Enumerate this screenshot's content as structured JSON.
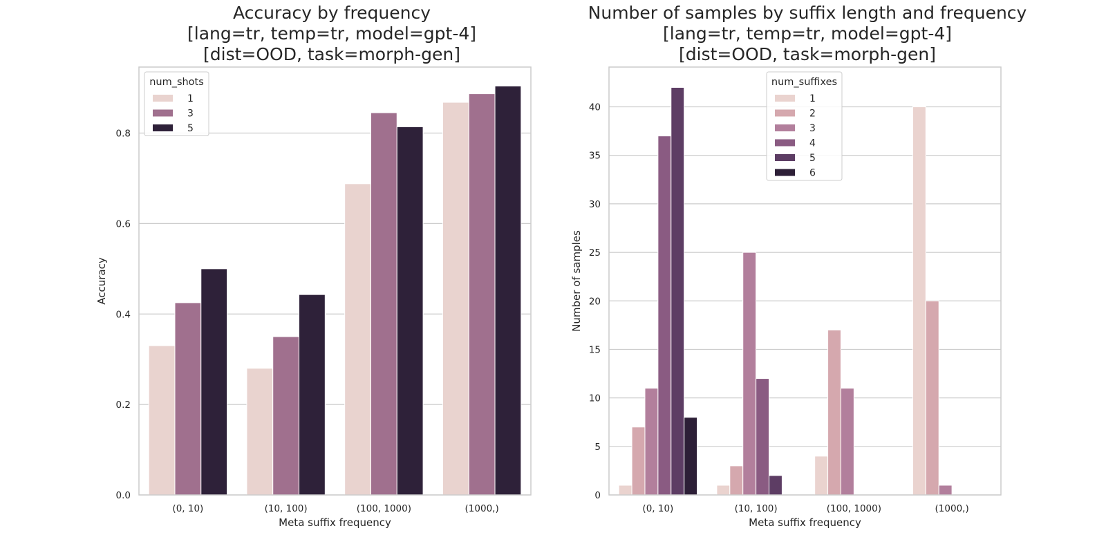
{
  "chart_data": [
    {
      "type": "bar",
      "title_lines": [
        "Accuracy by frequency",
        "[lang=tr, temp=tr, model=gpt-4]",
        "[dist=OOD, task=morph-gen]"
      ],
      "xlabel": "Meta suffix frequency",
      "ylabel": "Accuracy",
      "categories": [
        "(0, 10)",
        "(10, 100)",
        "(100, 1000)",
        "(1000,)"
      ],
      "ylim": [
        0,
        0.946
      ],
      "yticks": [
        0.0,
        0.2,
        0.4,
        0.6,
        0.8
      ],
      "ytick_labels": [
        "0.0",
        "0.2",
        "0.4",
        "0.6",
        "0.8"
      ],
      "grid": "horizontal",
      "legend": {
        "title": "num_shots",
        "placement": "top-left"
      },
      "series": [
        {
          "name": "1",
          "color": "#e9d3cf",
          "values": [
            0.33,
            0.28,
            0.688,
            0.868
          ]
        },
        {
          "name": "3",
          "color": "#a0708e",
          "values": [
            0.425,
            0.35,
            0.845,
            0.887
          ]
        },
        {
          "name": "5",
          "color": "#2e2139",
          "values": [
            0.5,
            0.443,
            0.814,
            0.904
          ]
        }
      ]
    },
    {
      "type": "bar",
      "title_lines": [
        "Number of samples by suffix length and frequency",
        "[lang=tr, temp=tr, model=gpt-4]",
        "[dist=OOD, task=morph-gen]"
      ],
      "xlabel": "Meta suffix frequency",
      "ylabel": "Number of samples",
      "categories": [
        "(0, 10)",
        "(10, 100)",
        "(100, 1000)",
        "(1000,)"
      ],
      "ylim": [
        0,
        44.1
      ],
      "yticks": [
        0,
        5,
        10,
        15,
        20,
        25,
        30,
        35,
        40
      ],
      "ytick_labels": [
        "0",
        "5",
        "10",
        "15",
        "20",
        "25",
        "30",
        "35",
        "40"
      ],
      "grid": "horizontal",
      "legend": {
        "title": "num_suffixes",
        "placement": "top-center"
      },
      "series": [
        {
          "name": "1",
          "color": "#ead3cf",
          "values": [
            1,
            1,
            4,
            40
          ]
        },
        {
          "name": "2",
          "color": "#d5a8ae",
          "values": [
            7,
            3,
            17,
            20
          ]
        },
        {
          "name": "3",
          "color": "#b27f9c",
          "values": [
            11,
            25,
            11,
            1
          ]
        },
        {
          "name": "4",
          "color": "#8a5b82",
          "values": [
            37,
            12,
            0,
            0
          ]
        },
        {
          "name": "5",
          "color": "#5d3d64",
          "values": [
            42,
            2,
            0,
            0
          ]
        },
        {
          "name": "6",
          "color": "#2d1f37",
          "values": [
            8,
            0,
            0,
            0
          ]
        }
      ]
    }
  ]
}
